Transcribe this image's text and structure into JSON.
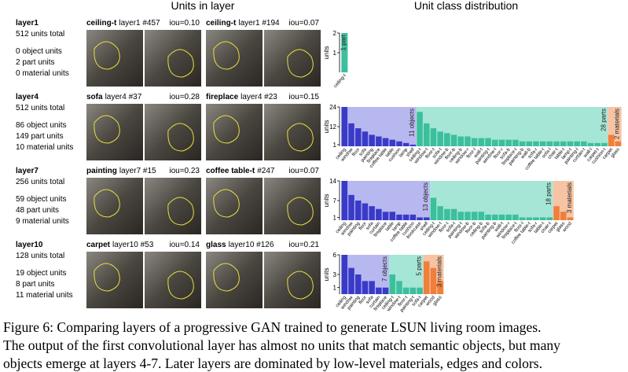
{
  "header": {
    "left": "Units in layer",
    "right": "Unit class distribution"
  },
  "units_label": "units",
  "rows": [
    {
      "layer": "layer1",
      "total": "512 units total",
      "objects": "0 object units",
      "parts": "2 part units",
      "materials": "0 material units",
      "panels": [
        {
          "class": "ceiling-t",
          "tag": "layer1 #457",
          "iou": "iou=0.10"
        },
        {
          "class": "ceiling-t",
          "tag": "layer1 #194",
          "iou": "iou=0.07"
        }
      ],
      "dist": {
        "ylim": [
          0,
          2
        ],
        "yticks": [
          1,
          2
        ],
        "groups": [
          {
            "label": "1 part",
            "color": "#3cbf9c",
            "background": "#a6e6d6",
            "categories": [
              "ceiling-t"
            ],
            "values": [
              2
            ]
          }
        ]
      }
    },
    {
      "layer": "layer4",
      "total": "512 units total",
      "objects": "86 object units",
      "parts": "149 part units",
      "materials": "10 material units",
      "panels": [
        {
          "class": "sofa",
          "tag": "layer4 #37",
          "iou": "iou=0.28"
        },
        {
          "class": "fireplace",
          "tag": "layer4 #23",
          "iou": "iou=0.15"
        }
      ],
      "dist": {
        "ylim": [
          0,
          24
        ],
        "yticks": [
          1,
          12,
          24
        ],
        "groups": [
          {
            "label": "11 objects",
            "color": "#3a3ac8",
            "background": "#b8b8f0",
            "categories": [
              "ceiling",
              "window",
              "floor",
              "sofa",
              "painting",
              "fireplace",
              "coffee table",
              "table",
              "cushion",
              "lamp",
              "shelf"
            ],
            "values": [
              24,
              14,
              11,
              9,
              7,
              6,
              5,
              4,
              3,
              2,
              1
            ]
          },
          {
            "label": "28 parts",
            "color": "#3cbf9c",
            "background": "#a6e6d6",
            "categories": [
              "ceiling-t",
              "window-t",
              "floor-t",
              "sofa-t",
              "window-b",
              "floor-b",
              "ceiling-b",
              "window-r",
              "floor-l",
              "wall-t",
              "painting-t",
              "window-l",
              "floor-r",
              "sofa-b",
              "fireplace-t",
              "painting-b",
              "wall-b",
              "sofa-r",
              "coffee table-t",
              "sofa-l",
              "chair-t",
              "table-t",
              "lamp-t",
              "painting-l",
              "curtain-t",
              "wall-l",
              "carpet-t",
              "cushion-t"
            ],
            "values": [
              21,
              14,
              11,
              9,
              8,
              7,
              6,
              6,
              5,
              5,
              5,
              4,
              4,
              4,
              4,
              3,
              3,
              3,
              3,
              3,
              3,
              3,
              3,
              3,
              3,
              2,
              2,
              2
            ]
          },
          {
            "label": "2 materials",
            "color": "#ef7f3a",
            "background": "#f6c4a4",
            "categories": [
              "carpet",
              "glass"
            ],
            "values": [
              7,
              3
            ]
          }
        ]
      }
    },
    {
      "layer": "layer7",
      "total": "256 units total",
      "objects": "59 object units",
      "parts": "48 part units",
      "materials": "9 material units",
      "panels": [
        {
          "class": "painting",
          "tag": "layer7 #15",
          "iou": "iou=0.23"
        },
        {
          "class": "coffee table-t",
          "tag": "#247",
          "iou": "iou=0.07"
        }
      ],
      "dist": {
        "ylim": [
          0,
          14
        ],
        "yticks": [
          1,
          7,
          14
        ],
        "groups": [
          {
            "label": "13 objects",
            "color": "#3a3ac8",
            "background": "#b8b8f0",
            "categories": [
              "ceiling",
              "window",
              "painting",
              "floor",
              "sofa",
              "curtain",
              "fireplace",
              "table",
              "lamp",
              "coffee table",
              "cushion",
              "bookcase",
              "shelf"
            ],
            "values": [
              14,
              9,
              7,
              6,
              5,
              4,
              3,
              3,
              2,
              2,
              2,
              1,
              1
            ]
          },
          {
            "label": "18 parts",
            "color": "#3cbf9c",
            "background": "#a6e6d6",
            "categories": [
              "ceiling-t",
              "window-t",
              "floor-t",
              "sofa-t",
              "painting-t",
              "window-b",
              "floor-b",
              "ceiling-b",
              "sofa-b",
              "painting-b",
              "wall-t",
              "window-r",
              "fireplace-t",
              "floor-l",
              "coffee table-t",
              "sofa-r",
              "table-t",
              "chair-t"
            ],
            "values": [
              8,
              5,
              4,
              4,
              3,
              3,
              3,
              3,
              2,
              2,
              2,
              2,
              2,
              1,
              1,
              1,
              1,
              1
            ]
          },
          {
            "label": "3 materials",
            "color": "#ef7f3a",
            "background": "#f6c4a4",
            "categories": [
              "carpet",
              "glass",
              "wood"
            ],
            "values": [
              5,
              3,
              1
            ]
          }
        ]
      }
    },
    {
      "layer": "layer10",
      "total": "128 units total",
      "objects": "19 object units",
      "parts": "8 part units",
      "materials": "11 material units",
      "panels": [
        {
          "class": "carpet",
          "tag": "layer10 #53",
          "iou": "iou=0.14"
        },
        {
          "class": "glass",
          "tag": "layer10 #126",
          "iou": "iou=0.21"
        }
      ],
      "dist": {
        "ylim": [
          0,
          6
        ],
        "yticks": [
          1,
          3,
          6
        ],
        "groups": [
          {
            "label": "7 objects",
            "color": "#3a3ac8",
            "background": "#b8b8f0",
            "categories": [
              "ceiling",
              "window",
              "painting",
              "floor",
              "sofa",
              "curtain",
              "fireplace"
            ],
            "values": [
              6,
              4,
              3,
              2,
              2,
              1,
              1
            ]
          },
          {
            "label": "5 parts",
            "color": "#3cbf9c",
            "background": "#a6e6d6",
            "categories": [
              "ceiling-t",
              "window-t",
              "floor-t",
              "painting-t",
              "sofa-t"
            ],
            "values": [
              3,
              2,
              1,
              1,
              1
            ]
          },
          {
            "label": "3 materials",
            "color": "#ef7f3a",
            "background": "#f6c4a4",
            "categories": [
              "carpet",
              "wood",
              "glass"
            ],
            "values": [
              5,
              4,
              2
            ]
          }
        ]
      }
    }
  ],
  "caption": [
    "Figure 6: Comparing layers of a progressive GAN trained to generate LSUN living room images.",
    "The output of the first convolutional layer has almost no units that match semantic objects, but many",
    "objects emerge at layers 4-7. Later layers are dominated by low-level materials, edges and colors."
  ]
}
